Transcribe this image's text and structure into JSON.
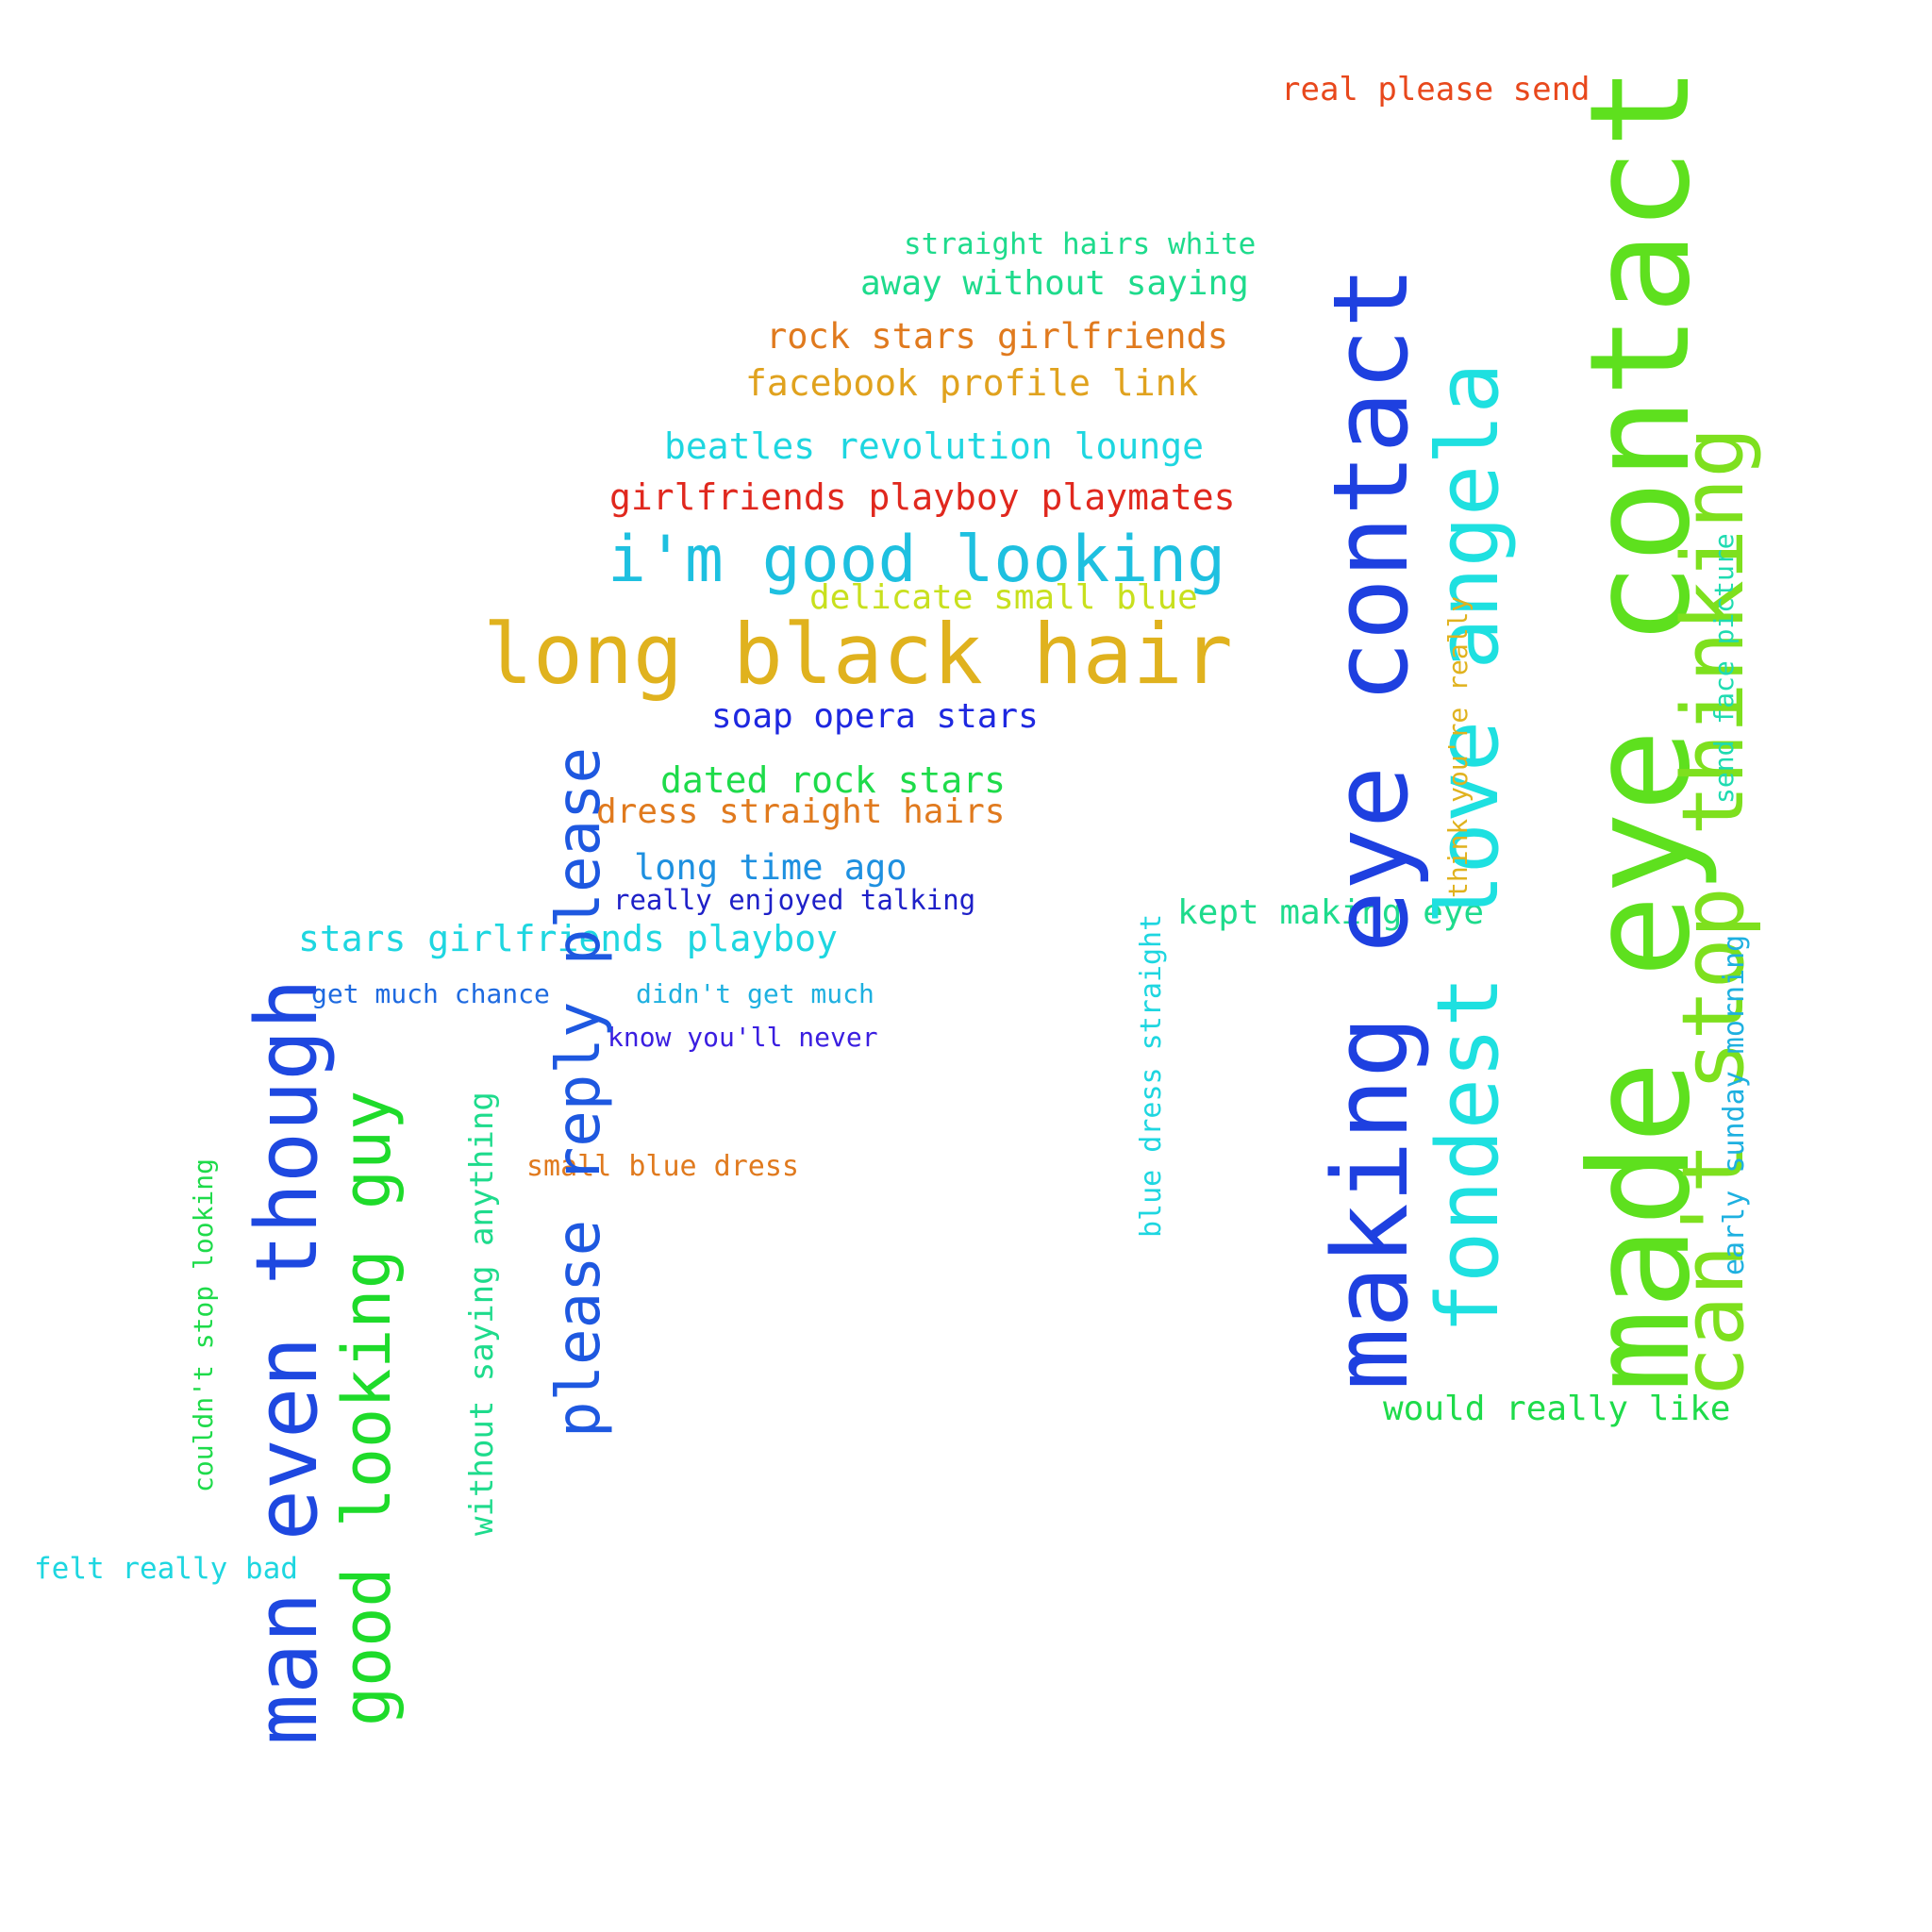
{
  "words": [
    {
      "text": "real please send",
      "color": "#E8481C"
    },
    {
      "text": "straight hairs white",
      "color": "#1EDB8C"
    },
    {
      "text": "away without saying",
      "color": "#1EDB8C"
    },
    {
      "text": "rock stars girlfriends",
      "color": "#E07A1E"
    },
    {
      "text": "facebook profile link",
      "color": "#E0A21E"
    },
    {
      "text": "beatles revolution lounge",
      "color": "#1ED6E0"
    },
    {
      "text": "girlfriends playboy playmates",
      "color": "#E0281E"
    },
    {
      "text": "i'm good looking",
      "color": "#1EC0E0"
    },
    {
      "text": "delicate small blue",
      "color": "#C8E01E"
    },
    {
      "text": "long black hair",
      "color": "#E0B21E"
    },
    {
      "text": "soap opera stars",
      "color": "#1E28E0"
    },
    {
      "text": "dated rock stars",
      "color": "#1EDB4A"
    },
    {
      "text": "dress straight hairs",
      "color": "#E07A1E"
    },
    {
      "text": "long time ago",
      "color": "#1E90E0"
    },
    {
      "text": "really enjoyed talking",
      "color": "#1E20C8"
    },
    {
      "text": "stars girlfriends playboy",
      "color": "#1ED6E0"
    },
    {
      "text": "get much chance",
      "color": "#1E6AE0"
    },
    {
      "text": "didn't get much",
      "color": "#1EB0E0"
    },
    {
      "text": "know you'll never",
      "color": "#3A1EE0"
    },
    {
      "text": "small blue dress",
      "color": "#E07A1E"
    },
    {
      "text": "felt really bad",
      "color": "#1ED6E0"
    },
    {
      "text": "kept making eye",
      "color": "#1EDB8C"
    },
    {
      "text": "would really like",
      "color": "#1EDB4A"
    },
    {
      "text": "making eye contact",
      "color": "#1E40E0"
    },
    {
      "text": "fondest love angela",
      "color": "#1EE0E0"
    },
    {
      "text": "made eye contact",
      "color": "#5EE01E"
    },
    {
      "text": "can't stop thinking",
      "color": "#7EE01E"
    },
    {
      "text": "think you're really",
      "color": "#E0B21E"
    },
    {
      "text": "send face picture",
      "color": "#1EDBB0"
    },
    {
      "text": "early sunday morning",
      "color": "#1EB0E0"
    },
    {
      "text": "blue dress straight",
      "color": "#1ED6E0"
    },
    {
      "text": "please reply please",
      "color": "#1E58E0"
    },
    {
      "text": "without saying anything",
      "color": "#1EDB8C"
    },
    {
      "text": "man even though",
      "color": "#1E48E0"
    },
    {
      "text": "good looking guy",
      "color": "#1EDB2A"
    },
    {
      "text": "couldn't stop looking",
      "color": "#1EDB4A"
    }
  ]
}
